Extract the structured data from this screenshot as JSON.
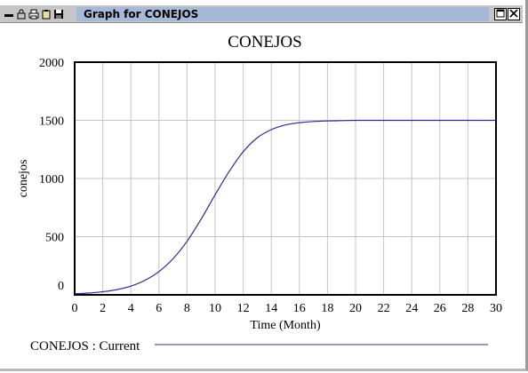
{
  "window": {
    "title": "Graph for CONEJOS",
    "toolbar_icons": [
      "minimize-bar-icon",
      "lock-icon",
      "print-icon",
      "clipboard-icon",
      "save-disk-icon"
    ],
    "controls": [
      "maximize-icon",
      "close-icon"
    ]
  },
  "chart_data": {
    "type": "line",
    "title": "CONEJOS",
    "xlabel": "Time (Month)",
    "ylabel": "conejos",
    "xlim": [
      0,
      30
    ],
    "ylim": [
      0,
      2000
    ],
    "x_ticks": [
      "0",
      "2",
      "4",
      "6",
      "8",
      "10",
      "12",
      "14",
      "16",
      "18",
      "20",
      "22",
      "24",
      "26",
      "28",
      "30"
    ],
    "y_ticks": [
      "0",
      "500",
      "1000",
      "1500",
      "2000"
    ],
    "grid": true,
    "legend": "bottom-left",
    "series": [
      {
        "name": "CONEJOS : Current",
        "color": "#2b2b8f",
        "x": [
          0,
          1,
          2,
          3,
          4,
          5,
          6,
          7,
          8,
          9,
          10,
          11,
          12,
          13,
          14,
          15,
          16,
          17,
          18,
          19,
          20,
          21,
          22,
          23,
          24,
          25,
          26,
          27,
          28,
          29,
          30
        ],
        "y": [
          10,
          15,
          27,
          45,
          75,
          125,
          200,
          310,
          460,
          650,
          860,
          1060,
          1230,
          1350,
          1420,
          1460,
          1480,
          1490,
          1495,
          1498,
          1500,
          1500,
          1500,
          1500,
          1500,
          1500,
          1500,
          1500,
          1500,
          1500,
          1500
        ]
      }
    ]
  }
}
